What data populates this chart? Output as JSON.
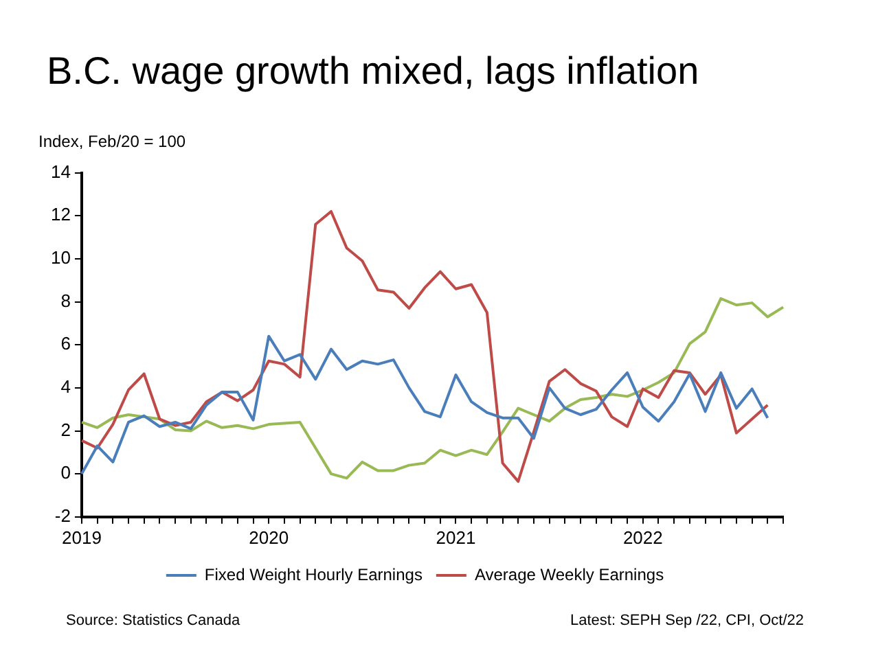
{
  "chart_data": {
    "type": "line",
    "title": "B.C. wage growth mixed, lags inflation",
    "ylabel": "Index, Feb/20 = 100",
    "categories": [
      "2019",
      null,
      null,
      null,
      null,
      null,
      null,
      null,
      null,
      null,
      null,
      null,
      "2020",
      null,
      null,
      null,
      null,
      null,
      null,
      null,
      null,
      null,
      null,
      null,
      "2021",
      null,
      null,
      null,
      null,
      null,
      null,
      null,
      null,
      null,
      null,
      null,
      "2022",
      null,
      null,
      null,
      null,
      null,
      null,
      null,
      null,
      null
    ],
    "series": [
      {
        "name": "Fixed Weight Hourly Earnings",
        "color": "#4a7ebb",
        "values": [
          0,
          1.3,
          0.55,
          2.4,
          2.7,
          2.2,
          2.4,
          2.1,
          3.2,
          3.8,
          3.8,
          2.5,
          6.4,
          5.25,
          5.55,
          4.4,
          5.8,
          4.85,
          5.25,
          5.1,
          5.3,
          4.0,
          2.9,
          2.65,
          4.6,
          3.35,
          2.85,
          2.6,
          2.6,
          1.65,
          4.0,
          3.05,
          2.75,
          3.0,
          3.9,
          4.7,
          3.1,
          2.45,
          3.35,
          4.65,
          2.9,
          4.7,
          3.05,
          3.95,
          2.6,
          null
        ]
      },
      {
        "name": "Average Weekly Earnings",
        "color": "#be4b48",
        "values": [
          1.55,
          1.2,
          2.3,
          3.9,
          4.65,
          2.55,
          2.25,
          2.4,
          3.35,
          3.8,
          3.4,
          3.9,
          5.25,
          5.1,
          4.5,
          11.6,
          12.2,
          10.5,
          9.9,
          8.55,
          8.45,
          7.7,
          8.65,
          9.4,
          8.6,
          8.8,
          7.5,
          0.5,
          -0.35,
          1.95,
          4.3,
          4.85,
          4.2,
          3.85,
          2.65,
          2.2,
          3.95,
          3.55,
          4.8,
          4.7,
          3.7,
          4.6,
          1.9,
          2.55,
          3.2,
          null
        ]
      },
      {
        "color": "#98b954",
        "values": [
          2.4,
          2.15,
          2.6,
          2.75,
          2.65,
          2.55,
          2.05,
          2.0,
          2.45,
          2.15,
          2.25,
          2.1,
          2.3,
          2.35,
          2.4,
          1.2,
          0,
          -0.2,
          0.55,
          0.15,
          0.15,
          0.4,
          0.5,
          1.1,
          0.85,
          1.1,
          0.9,
          1.95,
          3.05,
          2.75,
          2.45,
          3.05,
          3.45,
          3.55,
          3.7,
          3.6,
          3.9,
          4.25,
          4.7,
          6.05,
          6.6,
          8.15,
          7.85,
          7.95,
          7.3,
          7.75
        ]
      }
    ],
    "ylim": [
      -2,
      14
    ],
    "yticks": [
      -2,
      0,
      2,
      4,
      6,
      8,
      10,
      12,
      14
    ],
    "grid": false,
    "legend": "bottom",
    "marker": "none",
    "line_style": "solid",
    "annotations": [
      "Source: Statistics Canada",
      "Latest: SEPH Sep /22, CPI, Oct/22"
    ]
  }
}
